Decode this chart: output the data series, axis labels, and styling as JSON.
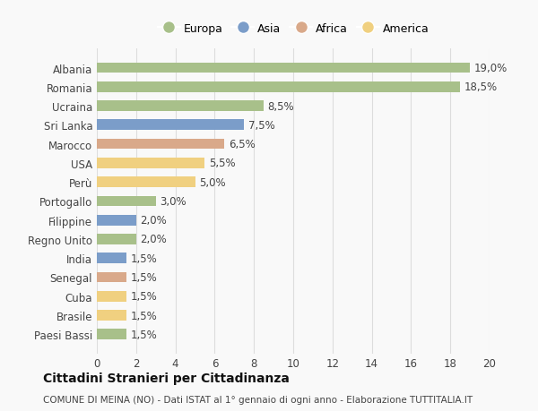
{
  "countries": [
    "Albania",
    "Romania",
    "Ucraina",
    "Sri Lanka",
    "Marocco",
    "USA",
    "Perù",
    "Portogallo",
    "Filippine",
    "Regno Unito",
    "India",
    "Senegal",
    "Cuba",
    "Brasile",
    "Paesi Bassi"
  ],
  "values": [
    19.0,
    18.5,
    8.5,
    7.5,
    6.5,
    5.5,
    5.0,
    3.0,
    2.0,
    2.0,
    1.5,
    1.5,
    1.5,
    1.5,
    1.5
  ],
  "labels": [
    "19,0%",
    "18,5%",
    "8,5%",
    "7,5%",
    "6,5%",
    "5,5%",
    "5,0%",
    "3,0%",
    "2,0%",
    "2,0%",
    "1,5%",
    "1,5%",
    "1,5%",
    "1,5%",
    "1,5%"
  ],
  "categories": [
    "Europa",
    "Asia",
    "Africa",
    "America"
  ],
  "bar_colors": [
    "#a8c08a",
    "#a8c08a",
    "#a8c08a",
    "#7b9dc9",
    "#d9a98a",
    "#f0d080",
    "#f0d080",
    "#a8c08a",
    "#7b9dc9",
    "#a8c08a",
    "#7b9dc9",
    "#d9a98a",
    "#f0d080",
    "#f0d080",
    "#a8c08a"
  ],
  "legend_colors": [
    "#a8c08a",
    "#7b9dc9",
    "#d9a98a",
    "#f0d080"
  ],
  "xlim": [
    0,
    20
  ],
  "xticks": [
    0,
    2,
    4,
    6,
    8,
    10,
    12,
    14,
    16,
    18,
    20
  ],
  "title": "Cittadini Stranieri per Cittadinanza",
  "subtitle": "COMUNE DI MEINA (NO) - Dati ISTAT al 1° gennaio di ogni anno - Elaborazione TUTTITALIA.IT",
  "background_color": "#f9f9f9",
  "grid_color": "#dddddd",
  "label_fontsize": 8.5,
  "value_fontsize": 8.5,
  "title_fontsize": 10,
  "subtitle_fontsize": 7.5
}
